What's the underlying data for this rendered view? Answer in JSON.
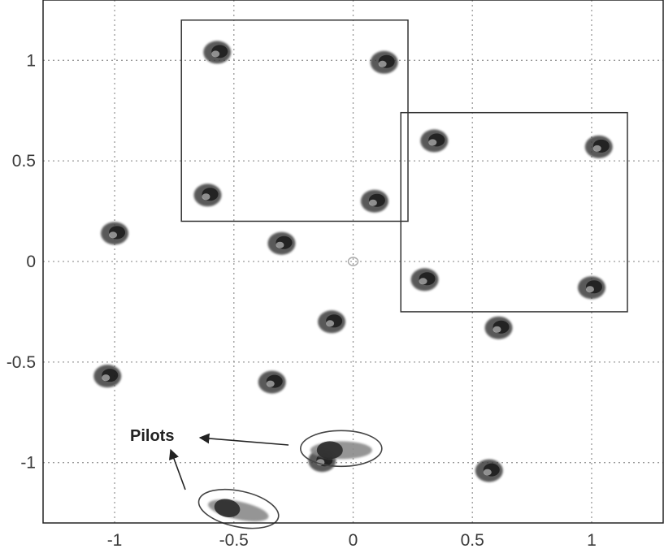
{
  "chart_data": {
    "type": "scatter",
    "title": "",
    "xlabel": "",
    "ylabel": "",
    "xlim": [
      -1.3,
      1.3
    ],
    "ylim": [
      -1.3,
      1.3
    ],
    "xticks": [
      -1,
      -0.5,
      0,
      0.5,
      1
    ],
    "xtick_labels": [
      "-1",
      "-0.5",
      "0",
      "0.5",
      "1"
    ],
    "yticks": [
      -1,
      -0.5,
      0,
      0.5,
      1
    ],
    "ytick_labels": [
      "-1",
      "-0.5",
      "0",
      "0.5",
      "1"
    ],
    "grid": true,
    "points": [
      {
        "x": -0.57,
        "y": 1.04
      },
      {
        "x": 0.13,
        "y": 0.99
      },
      {
        "x": 0.34,
        "y": 0.6
      },
      {
        "x": 1.03,
        "y": 0.57
      },
      {
        "x": -0.61,
        "y": 0.33
      },
      {
        "x": 0.09,
        "y": 0.3
      },
      {
        "x": -1.0,
        "y": 0.14
      },
      {
        "x": -0.3,
        "y": 0.09
      },
      {
        "x": 0.0,
        "y": 0.0
      },
      {
        "x": 0.3,
        "y": -0.09
      },
      {
        "x": 1.0,
        "y": -0.13
      },
      {
        "x": -0.09,
        "y": -0.3
      },
      {
        "x": 0.61,
        "y": -0.33
      },
      {
        "x": -1.03,
        "y": -0.57
      },
      {
        "x": -0.34,
        "y": -0.6
      },
      {
        "x": -0.13,
        "y": -0.99
      },
      {
        "x": 0.57,
        "y": -1.04
      }
    ],
    "pilots": [
      {
        "x": -0.05,
        "y": -0.93,
        "angle": 0
      },
      {
        "x": -0.48,
        "y": -1.23,
        "angle": 12
      }
    ],
    "boxes": [
      {
        "x0": -0.72,
        "x1": 0.23,
        "y0": 0.2,
        "y1": 1.2
      },
      {
        "x0": 0.2,
        "x1": 1.15,
        "y0": -0.25,
        "y1": 0.74
      }
    ],
    "annotation": "Pilots",
    "colors": {
      "cluster": "#3c3c3c",
      "grid": "#9a9a9a",
      "frame": "#222222"
    }
  }
}
